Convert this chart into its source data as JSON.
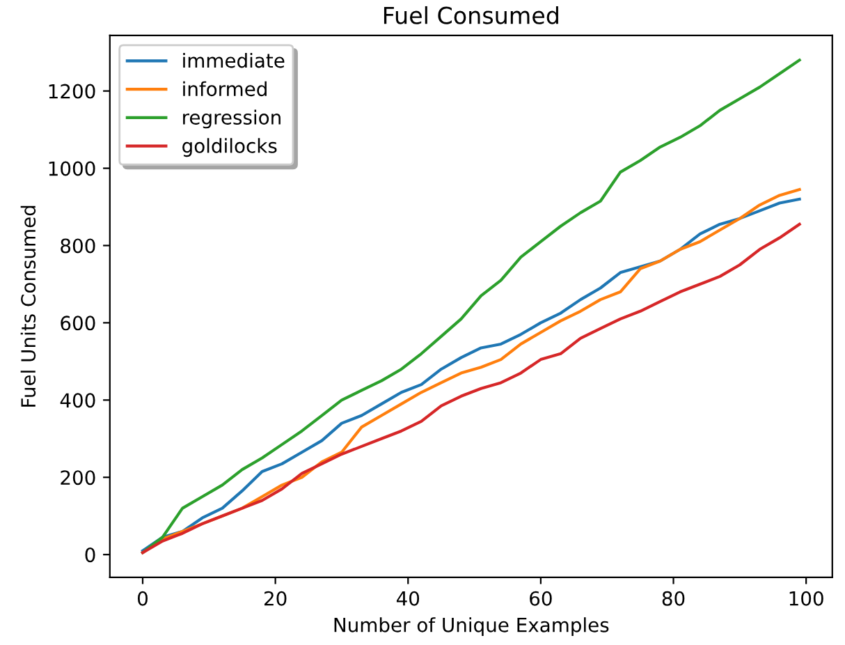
{
  "chart_data": {
    "type": "line",
    "title": "Fuel Consumed",
    "xlabel": "Number of Unique Examples",
    "ylabel": "Fuel Units Consumed",
    "x": [
      0,
      3,
      6,
      9,
      12,
      15,
      18,
      21,
      24,
      27,
      30,
      33,
      36,
      39,
      42,
      45,
      48,
      51,
      54,
      57,
      60,
      63,
      66,
      69,
      72,
      75,
      78,
      81,
      84,
      87,
      90,
      93,
      96,
      99
    ],
    "series": [
      {
        "name": "immediate",
        "color": "#1f77b4",
        "values": [
          10,
          45,
          60,
          95,
          120,
          165,
          215,
          235,
          265,
          295,
          340,
          360,
          390,
          420,
          440,
          480,
          510,
          535,
          545,
          570,
          600,
          625,
          660,
          690,
          730,
          745,
          760,
          790,
          830,
          855,
          870,
          890,
          910,
          920
        ]
      },
      {
        "name": "informed",
        "color": "#ff7f0e",
        "values": [
          5,
          40,
          60,
          80,
          100,
          120,
          150,
          180,
          200,
          240,
          265,
          330,
          360,
          390,
          420,
          445,
          470,
          485,
          505,
          545,
          575,
          605,
          630,
          660,
          680,
          740,
          760,
          790,
          810,
          840,
          870,
          905,
          930,
          945
        ]
      },
      {
        "name": "regression",
        "color": "#2ca02c",
        "values": [
          5,
          45,
          120,
          150,
          180,
          220,
          250,
          285,
          320,
          360,
          400,
          425,
          450,
          480,
          520,
          565,
          610,
          670,
          710,
          770,
          810,
          850,
          885,
          915,
          990,
          1020,
          1055,
          1080,
          1110,
          1150,
          1180,
          1210,
          1245,
          1280
        ]
      },
      {
        "name": "goldilocks",
        "color": "#d62728",
        "values": [
          5,
          35,
          55,
          80,
          100,
          120,
          140,
          170,
          210,
          235,
          260,
          280,
          300,
          320,
          345,
          385,
          410,
          430,
          445,
          470,
          505,
          520,
          560,
          585,
          610,
          630,
          655,
          680,
          700,
          720,
          750,
          790,
          820,
          855
        ]
      }
    ],
    "xlim": [
      -4.95,
      103.95
    ],
    "ylim": [
      -58.75,
      1343.75
    ],
    "xticks": [
      0,
      20,
      40,
      60,
      80,
      100
    ],
    "yticks": [
      0,
      200,
      400,
      600,
      800,
      1000,
      1200
    ],
    "grid": false,
    "legend": "top left",
    "marker": "none",
    "line_style": "solid"
  }
}
